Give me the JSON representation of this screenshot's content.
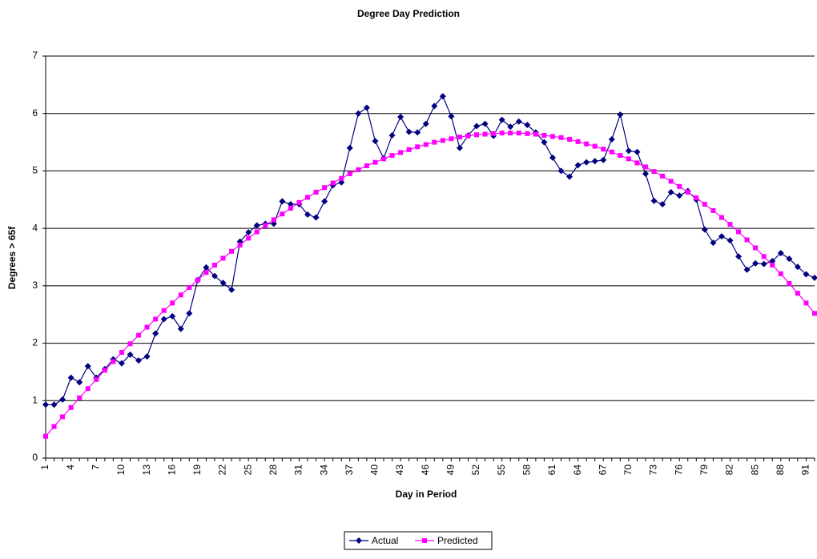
{
  "chart_data": {
    "type": "line",
    "title": "Degree Day Prediction",
    "x_label": "Day in Period",
    "y_label": "Degrees > 65f",
    "categories": [
      1,
      null,
      null,
      4,
      null,
      null,
      7,
      null,
      null,
      10,
      null,
      null,
      13,
      null,
      null,
      16,
      null,
      null,
      19,
      null,
      null,
      22,
      null,
      null,
      25,
      null,
      null,
      28,
      null,
      null,
      31,
      null,
      null,
      34,
      null,
      null,
      37,
      null,
      null,
      40,
      null,
      null,
      43,
      null,
      null,
      46,
      null,
      null,
      49,
      null,
      null,
      52,
      null,
      null,
      55,
      null,
      null,
      58,
      null,
      null,
      61,
      null,
      null,
      64,
      null,
      null,
      67,
      null,
      null,
      70,
      null,
      null,
      73,
      null,
      null,
      76,
      null,
      null,
      79,
      null,
      null,
      82,
      null,
      null,
      85,
      null,
      null,
      88,
      null,
      null,
      91,
      null
    ],
    "series": [
      {
        "name": "Actual",
        "color": "#000080",
        "marker": "diamond",
        "values": [
          0.93,
          0.93,
          1.02,
          1.4,
          1.32,
          1.6,
          1.4,
          1.55,
          1.72,
          1.65,
          1.8,
          1.7,
          1.77,
          2.17,
          2.42,
          2.47,
          2.25,
          2.52,
          3.1,
          3.32,
          3.17,
          3.05,
          2.93,
          3.77,
          3.93,
          4.05,
          4.08,
          4.08,
          4.47,
          4.42,
          4.42,
          4.24,
          4.19,
          4.47,
          4.75,
          4.8,
          5.4,
          6.0,
          6.1,
          5.52,
          5.22,
          5.62,
          5.94,
          5.68,
          5.67,
          5.82,
          6.13,
          6.3,
          5.95,
          5.4,
          5.62,
          5.78,
          5.82,
          5.61,
          5.89,
          5.77,
          5.86,
          5.8,
          5.67,
          5.5,
          5.23,
          5.0,
          4.9,
          5.1,
          5.15,
          5.17,
          5.19,
          5.55,
          5.98,
          5.35,
          5.33,
          4.95,
          4.48,
          4.42,
          4.63,
          4.57,
          4.65,
          4.5,
          3.98,
          3.75,
          3.86,
          3.79,
          3.51,
          3.28,
          3.39,
          3.38,
          3.43,
          3.57,
          3.47,
          3.33,
          3.2,
          3.14
        ]
      },
      {
        "name": "Predicted",
        "color": "#ff00ff",
        "marker": "square",
        "values": [
          0.38,
          0.55,
          0.72,
          0.88,
          1.05,
          1.21,
          1.37,
          1.53,
          1.68,
          1.84,
          1.99,
          2.14,
          2.28,
          2.42,
          2.57,
          2.7,
          2.84,
          2.97,
          3.1,
          3.23,
          3.36,
          3.48,
          3.6,
          3.71,
          3.83,
          3.94,
          4.05,
          4.15,
          4.25,
          4.35,
          4.45,
          4.54,
          4.63,
          4.71,
          4.79,
          4.87,
          4.95,
          5.02,
          5.09,
          5.15,
          5.21,
          5.27,
          5.32,
          5.37,
          5.42,
          5.46,
          5.5,
          5.53,
          5.56,
          5.59,
          5.61,
          5.63,
          5.64,
          5.65,
          5.66,
          5.66,
          5.66,
          5.65,
          5.64,
          5.62,
          5.6,
          5.58,
          5.55,
          5.51,
          5.47,
          5.43,
          5.38,
          5.33,
          5.27,
          5.21,
          5.14,
          5.07,
          4.99,
          4.91,
          4.82,
          4.73,
          4.63,
          4.53,
          4.42,
          4.31,
          4.19,
          4.07,
          3.94,
          3.8,
          3.66,
          3.51,
          3.36,
          3.21,
          3.04,
          2.87,
          2.7,
          2.52
        ]
      }
    ],
    "ylim": [
      0,
      7
    ],
    "yticks": [
      0,
      1,
      2,
      3,
      4,
      5,
      6,
      7
    ],
    "grid": true,
    "legend": "bottom"
  }
}
